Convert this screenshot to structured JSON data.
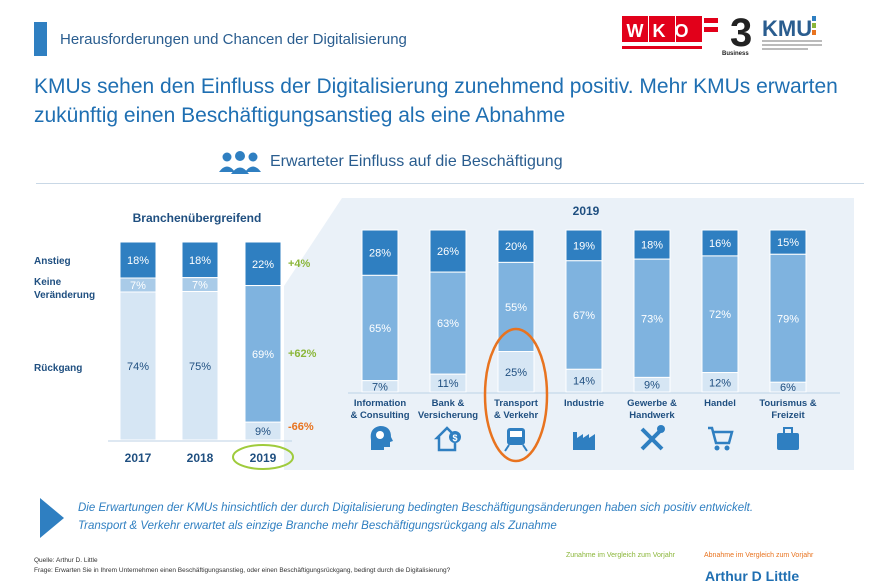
{
  "header": {
    "title": "Herausforderungen und Chancen der Digitalisierung"
  },
  "logos": {
    "wko": "WKO",
    "three": "3",
    "business": "Business",
    "kmu": "KMU"
  },
  "headline": "KMUs sehen den Einfluss der Digitalisierung zunehmend positiv. Mehr KMUs erwarten zukünftig einen Beschäftigungsanstieg als eine Abnahme",
  "subtitle": "Erwarteter Einfluss auf die Beschäftigung",
  "chart_data": [
    {
      "type": "bar",
      "stacked": true,
      "title": "Branchenübergreifend",
      "categories": [
        "2017",
        "2018",
        "2019"
      ],
      "series": [
        {
          "name": "Anstieg",
          "values": [
            18,
            18,
            22
          ],
          "labels": [
            "18%",
            "18%",
            "22%"
          ]
        },
        {
          "name": "Keine Veränderung",
          "values": [
            7,
            7,
            69
          ],
          "labels": [
            "7%",
            "7%",
            "69%"
          ]
        },
        {
          "name": "Rückgang",
          "values": [
            74,
            75,
            9
          ],
          "labels": [
            "74%",
            "75%",
            "9%"
          ]
        }
      ],
      "changes": [
        "+4%",
        "+62%",
        "-66%"
      ],
      "row_labels": [
        "Anstieg",
        "Keine",
        "Veränderung",
        "Rückgang"
      ],
      "colors": {
        "top": "#2f7fc1",
        "mid_old": "#a9cbe8",
        "low_old": "#d6e6f4",
        "mid_2019": "#7fb3df",
        "low_2019": "#d6e6f4",
        "up": "#8bb63a",
        "down": "#e8731f"
      }
    },
    {
      "type": "bar",
      "stacked": true,
      "title": "2019",
      "categories": [
        "Information & Consulting",
        "Bank & Versicherung",
        "Transport & Verkehr",
        "Industrie",
        "Gewerbe & Handwerk",
        "Handel",
        "Tourismus & Freizeit"
      ],
      "category_lines": [
        [
          "Information",
          "& Consulting"
        ],
        [
          "Bank &",
          "Versicherung"
        ],
        [
          "Transport",
          "& Verkehr"
        ],
        [
          "Industrie"
        ],
        [
          "Gewerbe &",
          "Handwerk"
        ],
        [
          "Handel"
        ],
        [
          "Tourismus &",
          "Freizeit"
        ]
      ],
      "series": [
        {
          "name": "Anstieg",
          "values": [
            28,
            26,
            20,
            19,
            18,
            16,
            15
          ],
          "labels": [
            "28%",
            "26%",
            "20%",
            "19%",
            "18%",
            "16%",
            "15%"
          ]
        },
        {
          "name": "Keine Veränderung",
          "values": [
            65,
            63,
            55,
            67,
            73,
            72,
            79
          ],
          "labels": [
            "65%",
            "63%",
            "55%",
            "67%",
            "73%",
            "72%",
            "79%"
          ]
        },
        {
          "name": "Rückgang",
          "values": [
            7,
            11,
            25,
            14,
            9,
            12,
            6
          ],
          "labels": [
            "7%",
            "11%",
            "25%",
            "14%",
            "9%",
            "12%",
            "6%"
          ]
        }
      ],
      "highlight": "Transport & Verkehr",
      "icons": [
        "consulting-head-icon",
        "bank-house-icon",
        "train-icon",
        "factory-icon",
        "tools-icon",
        "shopping-cart-icon",
        "suitcase-icon"
      ]
    }
  ],
  "note": "Die Erwartungen der KMUs hinsichtlich der durch Digitalisierung bedingten Beschäftigungsänderungen haben sich positiv entwickelt. Transport & Verkehr erwartet als einzige Branche mehr Beschäftigungsrückgang als Zunahme",
  "source": "Quelle: Arthur D. Little",
  "question": "Frage: Erwarten Sie in Ihrem Unternehmen einen Beschäftigungsanstieg, oder einen Beschäftigungsrückgang, bedingt durch die Digitalisierung?",
  "legend": {
    "up": "Zunahme im Vergleich zum Vorjahr",
    "down": "Abnahme im Vergleich zum Vorjahr"
  },
  "brand": "Arthur D Little"
}
